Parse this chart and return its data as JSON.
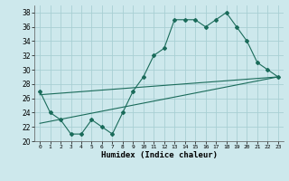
{
  "title": "",
  "xlabel": "Humidex (Indice chaleur)",
  "ylabel": "",
  "background_color": "#cde8ec",
  "line_color": "#1a6b5a",
  "grid_color": "#a8cfd4",
  "xlim": [
    -0.5,
    23.5
  ],
  "ylim": [
    20,
    39
  ],
  "xticks": [
    0,
    1,
    2,
    3,
    4,
    5,
    6,
    7,
    8,
    9,
    10,
    11,
    12,
    13,
    14,
    15,
    16,
    17,
    18,
    19,
    20,
    21,
    22,
    23
  ],
  "yticks": [
    20,
    22,
    24,
    26,
    28,
    30,
    32,
    34,
    36,
    38
  ],
  "line1": {
    "x": [
      0,
      1,
      2,
      3,
      4,
      5,
      6,
      7,
      8,
      9,
      10,
      11,
      12,
      13,
      14,
      15,
      16,
      17,
      18,
      19,
      20,
      21,
      22,
      23
    ],
    "y": [
      27,
      24,
      23,
      21,
      21,
      23,
      22,
      21,
      24,
      27,
      29,
      32,
      33,
      37,
      37,
      37,
      36,
      37,
      38,
      36,
      34,
      31,
      30,
      29
    ]
  },
  "line2": {
    "x": [
      0,
      23
    ],
    "y": [
      26.5,
      29
    ]
  },
  "line3": {
    "x": [
      0,
      23
    ],
    "y": [
      22.5,
      29
    ]
  }
}
